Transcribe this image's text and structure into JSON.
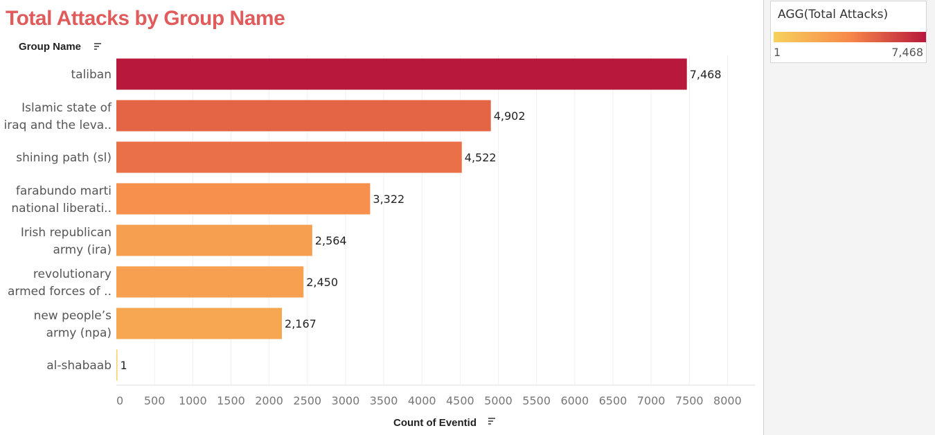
{
  "title": "Total Attacks by Group Name",
  "colors": {
    "title": "#e05c5c",
    "ramp_low": "#f7d15c",
    "ramp_mid": "#f7884a",
    "ramp_high": "#b8183c"
  },
  "legend": {
    "title": "AGG(Total Attacks)",
    "min_label": "1",
    "max_label": "7,468"
  },
  "chart_data": {
    "type": "bar",
    "orientation": "horizontal",
    "row_header": "Group Name",
    "xlabel": "Count of Eventid",
    "xlim": [
      0,
      8000
    ],
    "xticks": [
      0,
      500,
      1000,
      1500,
      2000,
      2500,
      3000,
      3500,
      4000,
      4500,
      5000,
      5500,
      6000,
      6500,
      7000,
      7500,
      8000
    ],
    "categories": [
      [
        "taliban"
      ],
      [
        "Islamic state of",
        "iraq and the leva.."
      ],
      [
        "shining path (sl)"
      ],
      [
        "farabundo marti",
        "national liberati.."
      ],
      [
        "Irish republican",
        "army (ira)"
      ],
      [
        "revolutionary",
        "armed forces of .."
      ],
      [
        "new people’s",
        "army (npa)"
      ],
      [
        "al-shabaab"
      ]
    ],
    "values": [
      7468,
      4902,
      4522,
      3322,
      2564,
      2450,
      2167,
      1
    ],
    "value_labels": [
      "7,468",
      "4,902",
      "4,522",
      "3,322",
      "2,564",
      "2,450",
      "2,167",
      "1"
    ],
    "grid": "vertical"
  }
}
